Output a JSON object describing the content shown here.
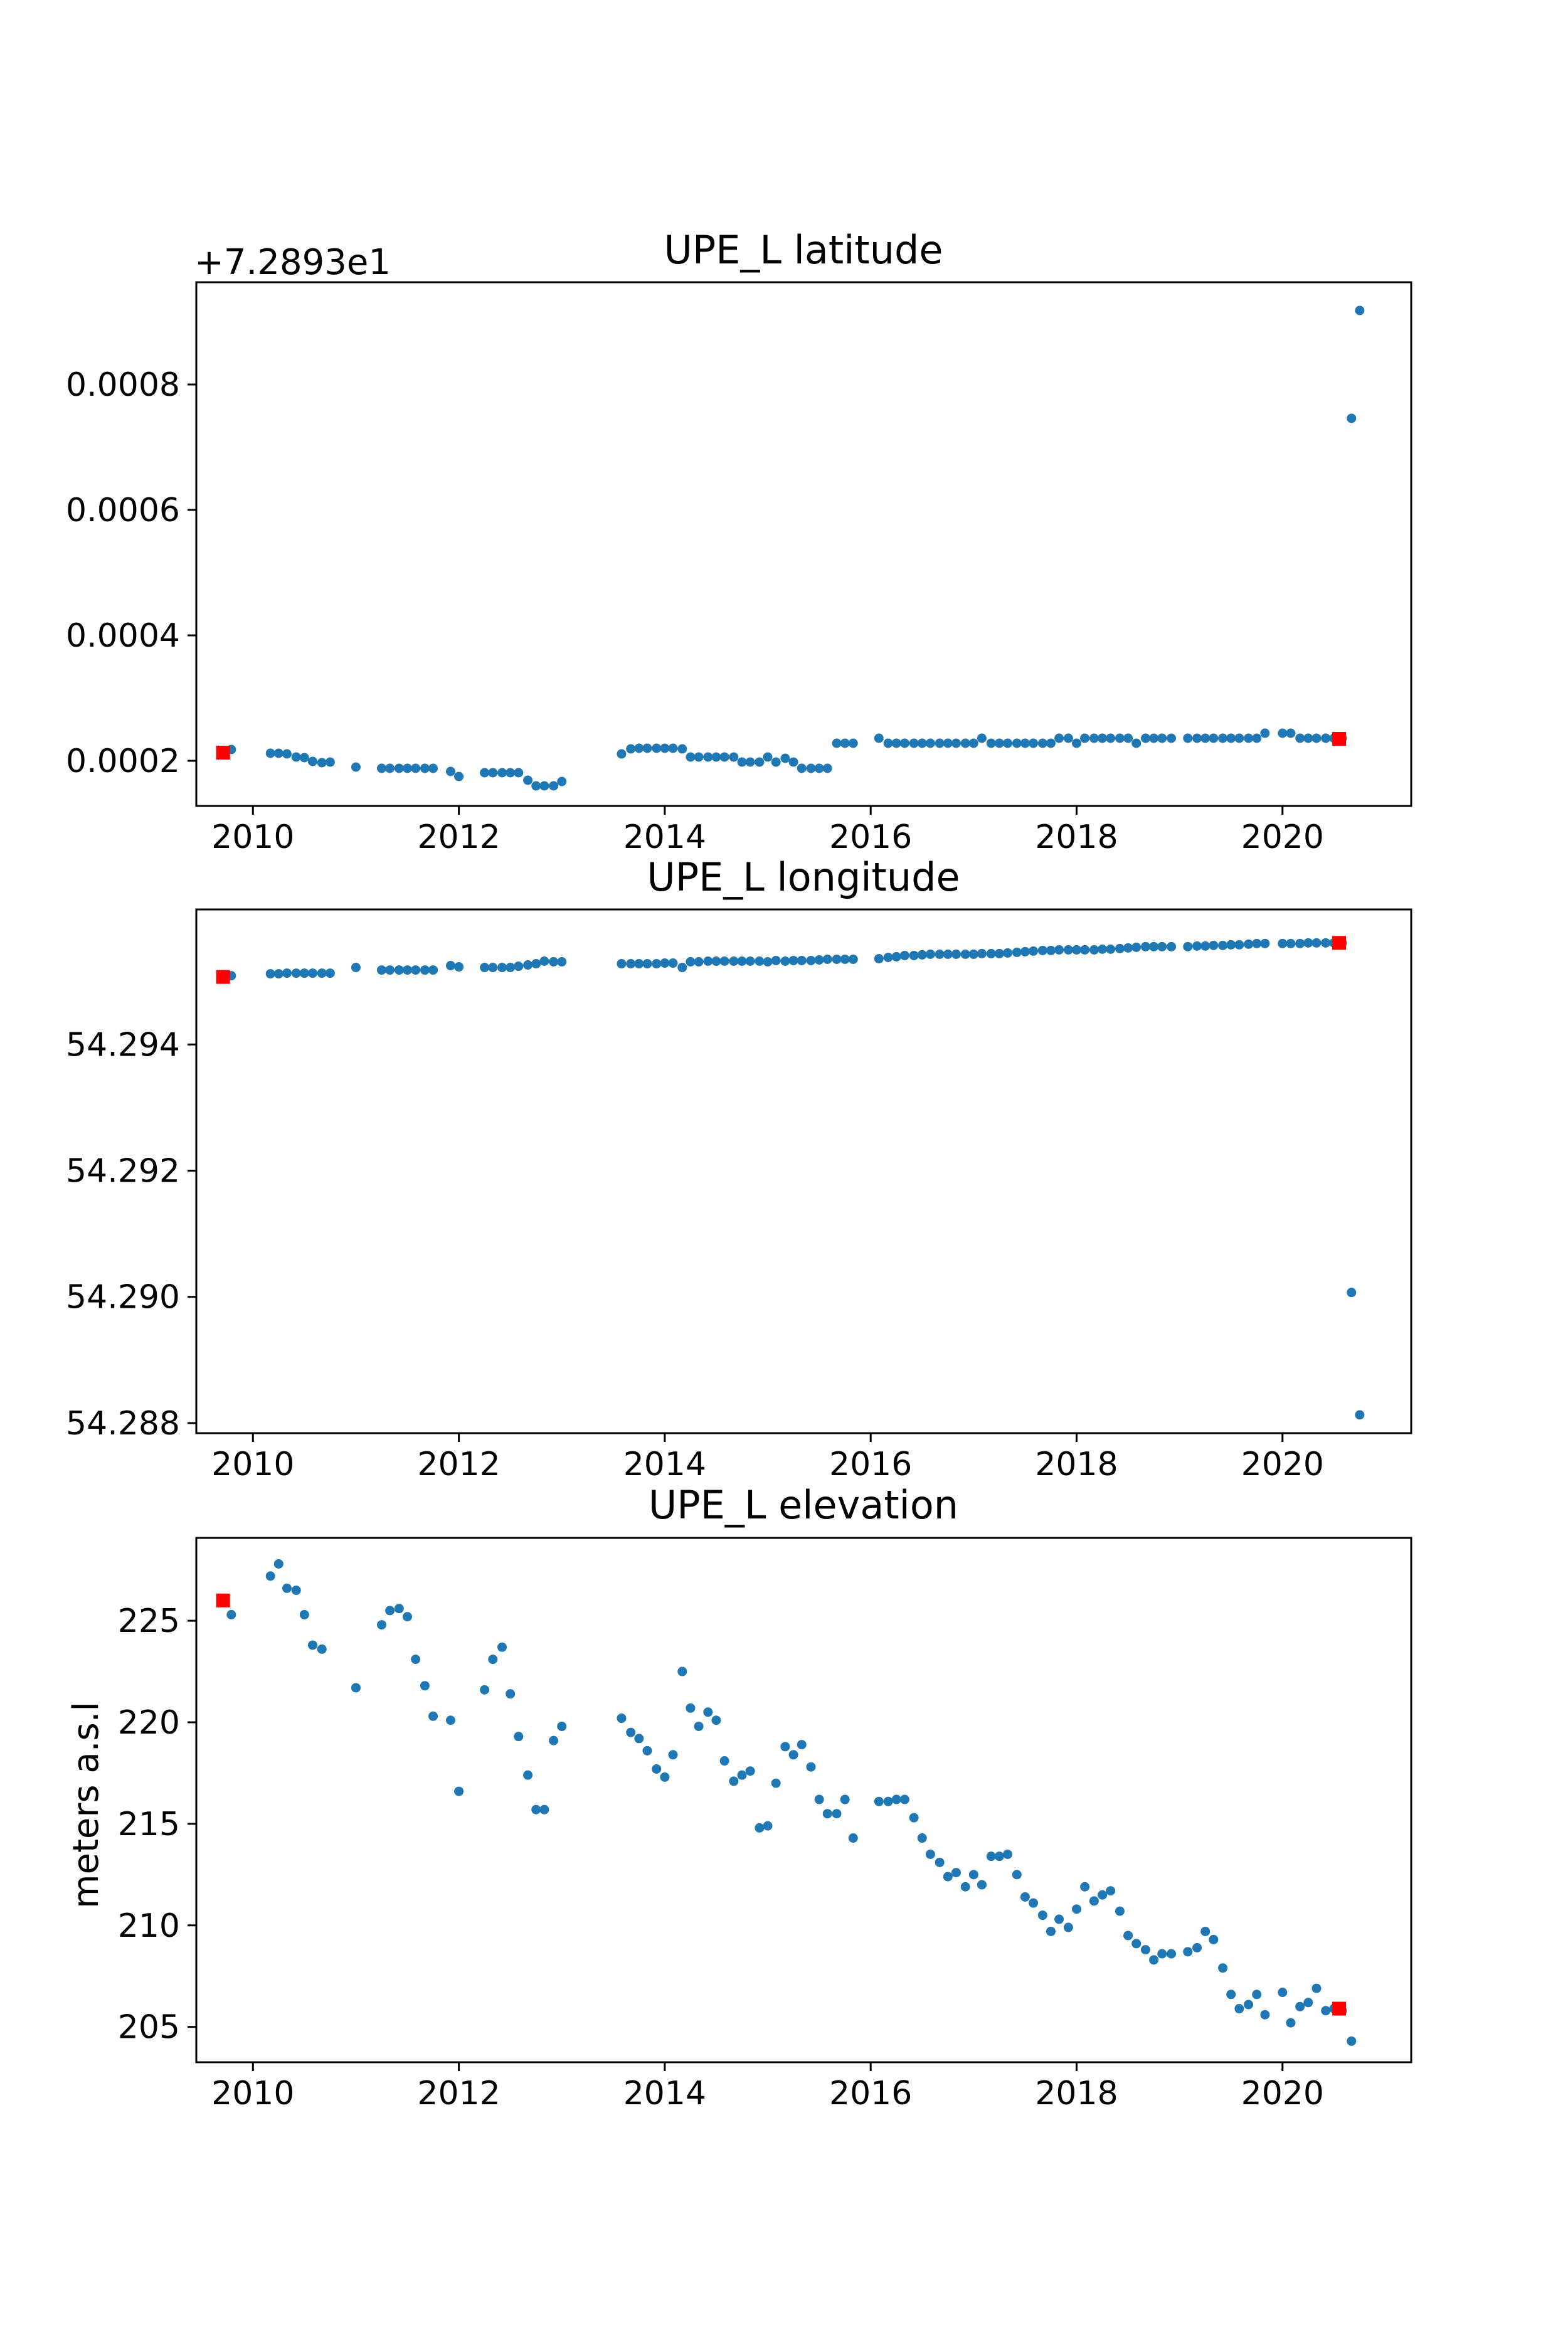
{
  "figure": {
    "colors": {
      "series_color": "#1f77b4",
      "marker_color": "#ff0000",
      "axis_color": "#000000",
      "background": "#ffffff"
    }
  },
  "chart_data": [
    {
      "type": "scatter",
      "title": "UPE_L latitude",
      "xlabel": "",
      "ylabel": "",
      "offset_label": "+7.2893e1",
      "xlim": [
        2009.45,
        2021.25
      ],
      "ylim": [
        0.000128,
        0.000963
      ],
      "grid": false,
      "legend": "none",
      "xticks": [
        "2010",
        "2012",
        "2014",
        "2016",
        "2018",
        "2020"
      ],
      "yticks": [
        "0.0002",
        "0.0004",
        "0.0006",
        "0.0008"
      ],
      "series": [
        {
          "marker": "dot",
          "color": "#1f77b4",
          "x": [
            2009.79,
            2010.17,
            2010.25,
            2010.33,
            2010.42,
            2010.5,
            2010.58,
            2010.67,
            2010.75,
            2011.0,
            2011.25,
            2011.33,
            2011.42,
            2011.5,
            2011.58,
            2011.67,
            2011.75,
            2011.92,
            2012.0,
            2012.25,
            2012.33,
            2012.42,
            2012.5,
            2012.58,
            2012.67,
            2012.75,
            2012.83,
            2012.92,
            2013.0,
            2013.58,
            2013.67,
            2013.75,
            2013.83,
            2013.92,
            2014.0,
            2014.08,
            2014.17,
            2014.25,
            2014.33,
            2014.42,
            2014.5,
            2014.58,
            2014.67,
            2014.75,
            2014.83,
            2014.92,
            2015.0,
            2015.08,
            2015.17,
            2015.25,
            2015.33,
            2015.42,
            2015.5,
            2015.58,
            2015.67,
            2015.75,
            2015.83,
            2016.08,
            2016.17,
            2016.25,
            2016.33,
            2016.42,
            2016.5,
            2016.58,
            2016.67,
            2016.75,
            2016.83,
            2016.92,
            2017.0,
            2017.08,
            2017.17,
            2017.25,
            2017.33,
            2017.42,
            2017.5,
            2017.58,
            2017.67,
            2017.75,
            2017.83,
            2017.92,
            2018.0,
            2018.08,
            2018.17,
            2018.25,
            2018.33,
            2018.42,
            2018.5,
            2018.58,
            2018.67,
            2018.75,
            2018.83,
            2018.92,
            2019.08,
            2019.17,
            2019.25,
            2019.33,
            2019.42,
            2019.5,
            2019.58,
            2019.67,
            2019.75,
            2019.83,
            2020.0,
            2020.08,
            2020.17,
            2020.25,
            2020.33,
            2020.42,
            2020.5,
            2020.58,
            2020.67,
            2020.75
          ],
          "y": [
            0.000218,
            0.000212,
            0.000212,
            0.000211,
            0.000206,
            0.000205,
            0.000199,
            0.000197,
            0.000198,
            0.00019,
            0.000188,
            0.000188,
            0.000188,
            0.000188,
            0.000188,
            0.000188,
            0.000188,
            0.000183,
            0.000175,
            0.000181,
            0.000181,
            0.000181,
            0.000181,
            0.000181,
            0.000169,
            0.00016,
            0.00016,
            0.00016,
            0.000167,
            0.000211,
            0.000219,
            0.00022,
            0.00022,
            0.00022,
            0.00022,
            0.00022,
            0.000219,
            0.000206,
            0.000206,
            0.000206,
            0.000206,
            0.000206,
            0.000206,
            0.000198,
            0.000198,
            0.000198,
            0.000206,
            0.000198,
            0.000204,
            0.000198,
            0.000188,
            0.000188,
            0.000188,
            0.000188,
            0.000228,
            0.000228,
            0.000228,
            0.000236,
            0.000228,
            0.000228,
            0.000228,
            0.000228,
            0.000228,
            0.000228,
            0.000228,
            0.000228,
            0.000228,
            0.000228,
            0.000228,
            0.000236,
            0.000228,
            0.000228,
            0.000228,
            0.000228,
            0.000228,
            0.000228,
            0.000228,
            0.000228,
            0.000236,
            0.000236,
            0.000228,
            0.000236,
            0.000236,
            0.000236,
            0.000236,
            0.000236,
            0.000236,
            0.000228,
            0.000236,
            0.000236,
            0.000236,
            0.000236,
            0.000236,
            0.000236,
            0.000236,
            0.000236,
            0.000236,
            0.000236,
            0.000236,
            0.000236,
            0.000236,
            0.000244,
            0.000244,
            0.000244,
            0.000236,
            0.000236,
            0.000236,
            0.000236,
            0.000236,
            0.000236,
            0.000746,
            0.000918
          ]
        },
        {
          "marker": "square",
          "color": "#ff0000",
          "x": [
            2009.71,
            2020.55
          ],
          "y": [
            0.000213,
            0.000235
          ]
        }
      ]
    },
    {
      "type": "scatter",
      "title": "UPE_L longitude",
      "xlabel": "",
      "ylabel": "",
      "xlim": [
        2009.45,
        2021.25
      ],
      "ylim": [
        54.28784,
        54.29614
      ],
      "grid": false,
      "legend": "none",
      "xticks": [
        "2010",
        "2012",
        "2014",
        "2016",
        "2018",
        "2020"
      ],
      "yticks": [
        "54.288",
        "54.290",
        "54.292",
        "54.294"
      ],
      "series": [
        {
          "marker": "dot",
          "color": "#1f77b4",
          "x": [
            2009.79,
            2010.17,
            2010.25,
            2010.33,
            2010.42,
            2010.5,
            2010.58,
            2010.67,
            2010.75,
            2011.0,
            2011.25,
            2011.33,
            2011.42,
            2011.5,
            2011.58,
            2011.67,
            2011.75,
            2011.92,
            2012.0,
            2012.25,
            2012.33,
            2012.42,
            2012.5,
            2012.58,
            2012.67,
            2012.75,
            2012.83,
            2012.92,
            2013.0,
            2013.58,
            2013.67,
            2013.75,
            2013.83,
            2013.92,
            2014.0,
            2014.08,
            2014.17,
            2014.25,
            2014.33,
            2014.42,
            2014.5,
            2014.58,
            2014.67,
            2014.75,
            2014.83,
            2014.92,
            2015.0,
            2015.08,
            2015.17,
            2015.25,
            2015.33,
            2015.42,
            2015.5,
            2015.58,
            2015.67,
            2015.75,
            2015.83,
            2016.08,
            2016.17,
            2016.25,
            2016.33,
            2016.42,
            2016.5,
            2016.58,
            2016.67,
            2016.75,
            2016.83,
            2016.92,
            2017.0,
            2017.08,
            2017.17,
            2017.25,
            2017.33,
            2017.42,
            2017.5,
            2017.58,
            2017.67,
            2017.75,
            2017.83,
            2017.92,
            2018.0,
            2018.08,
            2018.17,
            2018.25,
            2018.33,
            2018.42,
            2018.5,
            2018.58,
            2018.67,
            2018.75,
            2018.83,
            2018.92,
            2019.08,
            2019.17,
            2019.25,
            2019.33,
            2019.42,
            2019.5,
            2019.58,
            2019.67,
            2019.75,
            2019.83,
            2020.0,
            2020.08,
            2020.17,
            2020.25,
            2020.33,
            2020.42,
            2020.5,
            2020.58,
            2020.67,
            2020.75
          ],
          "y": [
            54.29509,
            54.29512,
            54.29512,
            54.29513,
            54.29513,
            54.29513,
            54.29513,
            54.29513,
            54.29513,
            54.29522,
            54.29518,
            54.29518,
            54.29518,
            54.29518,
            54.29518,
            54.29518,
            54.29518,
            54.29525,
            54.29523,
            54.29522,
            54.29522,
            54.29522,
            54.29522,
            54.29524,
            54.29526,
            54.29528,
            54.29532,
            54.29531,
            54.29531,
            54.29528,
            54.29528,
            54.29528,
            54.29528,
            54.29528,
            54.29529,
            54.29529,
            54.29522,
            54.29531,
            54.29531,
            54.29532,
            54.29532,
            54.29532,
            54.29532,
            54.29532,
            54.29532,
            54.29532,
            54.29531,
            54.29533,
            54.29532,
            54.29533,
            54.29533,
            54.29533,
            54.29534,
            54.29535,
            54.29535,
            54.29535,
            54.29535,
            54.29536,
            54.29538,
            54.29539,
            54.29541,
            54.29541,
            54.29542,
            54.29543,
            54.29543,
            54.29543,
            54.29543,
            54.29543,
            54.29543,
            54.29544,
            54.29544,
            54.29544,
            54.29545,
            54.29546,
            54.29547,
            54.29548,
            54.29549,
            54.29549,
            54.2955,
            54.2955,
            54.2955,
            54.2955,
            54.2955,
            54.29551,
            54.29551,
            54.29552,
            54.29553,
            54.29554,
            54.29555,
            54.29555,
            54.29555,
            54.29555,
            54.29555,
            54.29556,
            54.29556,
            54.29557,
            54.29557,
            54.29558,
            54.29558,
            54.29559,
            54.2956,
            54.2956,
            54.2956,
            54.2956,
            54.2956,
            54.29561,
            54.29561,
            54.29561,
            54.29561,
            54.29561,
            54.29007,
            54.28813
          ]
        },
        {
          "marker": "square",
          "color": "#ff0000",
          "x": [
            2009.71,
            2020.55
          ],
          "y": [
            54.29507,
            54.29561
          ]
        }
      ]
    },
    {
      "type": "scatter",
      "title": "UPE_L elevation",
      "xlabel": "",
      "ylabel": "meters a.s.l",
      "xlim": [
        2009.45,
        2021.25
      ],
      "ylim": [
        203.26,
        229.08
      ],
      "grid": false,
      "legend": "none",
      "xticks": [
        "2010",
        "2012",
        "2014",
        "2016",
        "2018",
        "2020"
      ],
      "yticks": [
        "205",
        "210",
        "215",
        "220",
        "225"
      ],
      "series": [
        {
          "marker": "dot",
          "color": "#1f77b4",
          "x": [
            2009.79,
            2010.17,
            2010.25,
            2010.33,
            2010.42,
            2010.5,
            2010.58,
            2010.67,
            2010.75,
            2011.0,
            2011.25,
            2011.33,
            2011.42,
            2011.5,
            2011.58,
            2011.67,
            2011.75,
            2011.92,
            2012.0,
            2012.25,
            2012.33,
            2012.42,
            2012.5,
            2012.58,
            2012.67,
            2012.75,
            2012.83,
            2012.92,
            2013.0,
            2013.58,
            2013.67,
            2013.75,
            2013.83,
            2013.92,
            2014.0,
            2014.08,
            2014.17,
            2014.25,
            2014.33,
            2014.42,
            2014.5,
            2014.58,
            2014.67,
            2014.75,
            2014.83,
            2014.92,
            2015.0,
            2015.08,
            2015.17,
            2015.25,
            2015.33,
            2015.42,
            2015.5,
            2015.58,
            2015.67,
            2015.75,
            2015.83,
            2016.08,
            2016.17,
            2016.25,
            2016.33,
            2016.42,
            2016.5,
            2016.58,
            2016.67,
            2016.75,
            2016.83,
            2016.92,
            2017.0,
            2017.08,
            2017.17,
            2017.25,
            2017.33,
            2017.42,
            2017.5,
            2017.58,
            2017.67,
            2017.75,
            2017.83,
            2017.92,
            2018.0,
            2018.08,
            2018.17,
            2018.25,
            2018.33,
            2018.42,
            2018.5,
            2018.58,
            2018.67,
            2018.75,
            2018.83,
            2018.92,
            2019.08,
            2019.17,
            2019.25,
            2019.33,
            2019.42,
            2019.5,
            2019.58,
            2019.67,
            2019.75,
            2019.83,
            2020.0,
            2020.08,
            2020.17,
            2020.25,
            2020.33,
            2020.42,
            2020.5,
            2020.58,
            2020.67,
            2020.75
          ],
          "y": [
            225.3,
            227.2,
            227.8,
            226.6,
            226.5,
            225.3,
            223.8,
            223.6,
            null,
            221.7,
            224.8,
            225.5,
            225.6,
            225.2,
            223.1,
            221.8,
            220.3,
            220.1,
            216.6,
            221.6,
            223.1,
            223.7,
            221.4,
            219.3,
            217.4,
            215.7,
            215.7,
            219.1,
            219.8,
            220.2,
            219.5,
            219.2,
            218.6,
            217.7,
            217.3,
            218.4,
            222.5,
            220.7,
            219.8,
            220.5,
            220.1,
            218.1,
            217.1,
            217.4,
            217.6,
            214.8,
            214.9,
            217.0,
            218.8,
            218.4,
            218.9,
            217.8,
            216.2,
            215.5,
            215.5,
            216.2,
            214.3,
            216.1,
            216.1,
            216.2,
            216.2,
            215.3,
            214.3,
            213.5,
            213.1,
            212.4,
            212.6,
            211.9,
            212.5,
            212.0,
            213.4,
            213.4,
            213.5,
            212.5,
            211.4,
            211.1,
            210.5,
            209.7,
            210.3,
            209.9,
            210.8,
            211.9,
            211.2,
            211.5,
            211.7,
            210.7,
            209.5,
            209.1,
            208.8,
            208.3,
            208.6,
            208.6,
            208.7,
            208.9,
            209.7,
            209.3,
            207.9,
            206.6,
            205.9,
            206.1,
            206.6,
            205.6,
            206.7,
            205.2,
            206.0,
            206.2,
            206.9,
            205.8,
            205.9,
            205.8,
            204.3,
            null
          ],
          "y_note": ""
        },
        {
          "marker": "square",
          "color": "#ff0000",
          "x": [
            2009.71,
            2020.55
          ],
          "y": [
            226.0,
            205.9
          ]
        }
      ]
    }
  ]
}
